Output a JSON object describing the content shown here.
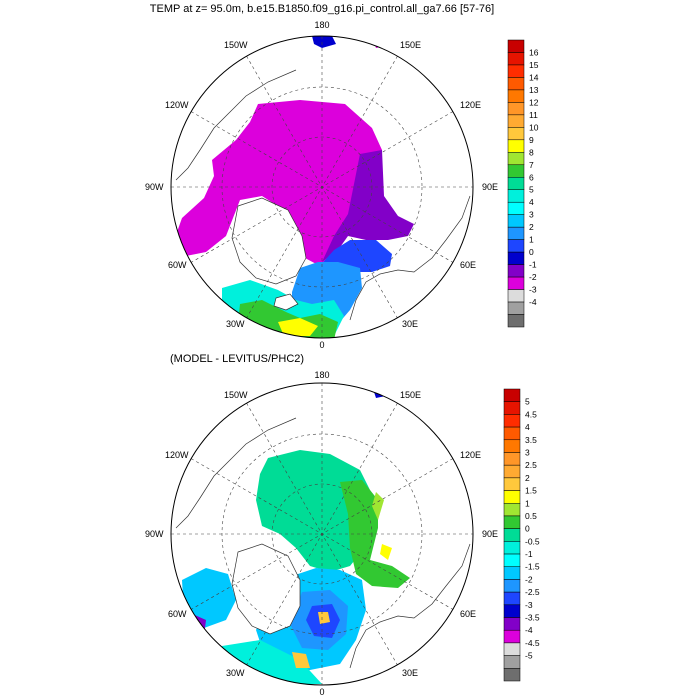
{
  "panels": [
    {
      "title": "TEMP at z=  95.0m, b.e15.B1850.f09_g16.pi_control.all_ga7.66 [57-76]",
      "lon_labels": {
        "top": "180",
        "bottom": "0",
        "left": "90W",
        "right": "90E",
        "ul1": "150W",
        "ul2": "120W",
        "ur1": "150E",
        "ur2": "120E",
        "ll1": "60W",
        "ll2": "30W",
        "lr1": "60E",
        "lr2": "30E"
      },
      "colorbar": {
        "labels": [
          "16",
          "15",
          "14",
          "13",
          "12",
          "11",
          "10",
          "9",
          "8",
          "7",
          "6",
          "5",
          "4",
          "3",
          "2",
          "1",
          "0",
          "-1",
          "-2",
          "-3",
          "-4"
        ],
        "colors": [
          "#c80000",
          "#e61400",
          "#ff2d00",
          "#ff5a00",
          "#ff7800",
          "#ff9628",
          "#ffaa32",
          "#ffc83c",
          "#ffff00",
          "#a0e632",
          "#32c832",
          "#00dc96",
          "#00f0dc",
          "#00ffff",
          "#00c8ff",
          "#1e96ff",
          "#1e46ff",
          "#0000cd",
          "#8200c8",
          "#dc00dc",
          "#dcdcdc",
          "#a0a0a0",
          "#6e6e6e"
        ]
      }
    },
    {
      "title": "(MODEL - LEVITUS/PHC2)",
      "lon_labels": {
        "top": "180",
        "bottom": "0",
        "left": "90W",
        "right": "90E",
        "ul1": "150W",
        "ul2": "120W",
        "ur1": "150E",
        "ur2": "120E",
        "ll1": "60W",
        "ll2": "30W",
        "lr1": "60E",
        "lr2": "30E"
      },
      "colorbar": {
        "labels": [
          "5",
          "4.5",
          "4",
          "3.5",
          "3",
          "2.5",
          "2",
          "1.5",
          "1",
          "0.5",
          "0",
          "-0.5",
          "-1",
          "-1.5",
          "-2",
          "-2.5",
          "-3",
          "-3.5",
          "-4",
          "-4.5",
          "-5"
        ],
        "colors": [
          "#c80000",
          "#e61400",
          "#ff2d00",
          "#ff5a00",
          "#ff7800",
          "#ff9628",
          "#ffaa32",
          "#ffc83c",
          "#ffff00",
          "#a0e632",
          "#32c832",
          "#00dc96",
          "#00f0dc",
          "#00ffff",
          "#00c8ff",
          "#1e96ff",
          "#1e46ff",
          "#0000cd",
          "#8200c8",
          "#dc00dc",
          "#dcdcdc",
          "#a0a0a0",
          "#6e6e6e"
        ]
      }
    }
  ]
}
